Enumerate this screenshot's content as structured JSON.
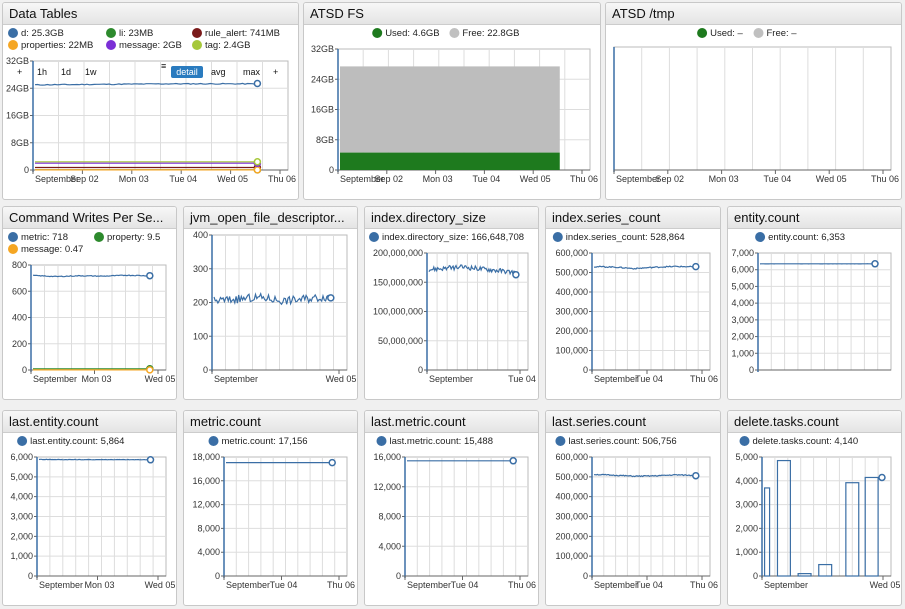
{
  "widgets": [
    {
      "title": "Data Tables",
      "type": "line",
      "legend": [
        {
          "label": "d: 25.3GB",
          "color": "#3a6ea5"
        },
        {
          "label": "li: 23MB",
          "color": "#2d8a2d"
        },
        {
          "label": "rule_alert: 741MB",
          "color": "#7a1a1a"
        },
        {
          "label": "properties: 22MB",
          "color": "#f5a623"
        },
        {
          "label": "message: 2GB",
          "color": "#7b2fd6"
        },
        {
          "label": "tag: 2.4GB",
          "color": "#a6c83a"
        }
      ],
      "controls": [
        "1h",
        "1d",
        "1w",
        "detail",
        "avg",
        "max"
      ],
      "yticks": [
        "0",
        "8GB",
        "16GB",
        "24GB",
        "32GB"
      ],
      "xticks": [
        "September",
        "Sep 02",
        "Mon 03",
        "Tue 04",
        "Wed 05",
        "Thu 06"
      ]
    },
    {
      "title": "ATSD FS",
      "type": "stacked-area",
      "legend": [
        {
          "label": "Used: 4.6GB",
          "color": "#1e7a1e"
        },
        {
          "label": "Free: 22.8GB",
          "color": "#c0c0c0"
        }
      ],
      "yticks": [
        "0",
        "8GB",
        "16GB",
        "24GB",
        "32GB"
      ],
      "xticks": [
        "September",
        "Sep 02",
        "Mon 03",
        "Tue 04",
        "Wed 05",
        "Thu 06"
      ]
    },
    {
      "title": "ATSD /tmp",
      "type": "empty",
      "legend": [
        {
          "label": "Used: –",
          "color": "#1e7a1e"
        },
        {
          "label": "Free: –",
          "color": "#c0c0c0"
        }
      ],
      "yticks": [],
      "xticks": [
        "September",
        "Sep 02",
        "Mon 03",
        "Tue 04",
        "Wed 05",
        "Thu 06"
      ]
    },
    {
      "title": "Command Writes Per Se...",
      "type": "line",
      "legend": [
        {
          "label": "metric: 718",
          "color": "#3a6ea5"
        },
        {
          "label": "property: 9.5",
          "color": "#2d8a2d"
        },
        {
          "label": "message: 0.47",
          "color": "#f5a623"
        }
      ],
      "yticks": [
        "0",
        "200",
        "400",
        "600",
        "800"
      ],
      "xticks": [
        "September",
        "Mon 03",
        "Wed 05"
      ]
    },
    {
      "title": "jvm_open_file_descriptor...",
      "type": "line",
      "legend": [],
      "yticks": [
        "0",
        "100",
        "200",
        "300",
        "400"
      ],
      "xticks": [
        "September",
        "Wed 05"
      ]
    },
    {
      "title": "index.directory_size",
      "type": "line",
      "legend": [
        {
          "label": "index.directory_size: 166,648,708",
          "color": "#3a6ea5"
        }
      ],
      "yticks": [
        "0",
        "50,000,000",
        "100,000,000",
        "150,000,000",
        "200,000,000"
      ],
      "xticks": [
        "September",
        "Tue 04"
      ]
    },
    {
      "title": "index.series_count",
      "type": "line",
      "legend": [
        {
          "label": "index.series_count: 528,864",
          "color": "#3a6ea5"
        }
      ],
      "yticks": [
        "0",
        "100,000",
        "200,000",
        "300,000",
        "400,000",
        "500,000",
        "600,000"
      ],
      "xticks": [
        "September",
        "Tue 04",
        "Thu 06"
      ]
    },
    {
      "title": "entity.count",
      "type": "line",
      "legend": [
        {
          "label": "entity.count: 6,353",
          "color": "#3a6ea5"
        }
      ],
      "yticks": [
        "0",
        "1,000",
        "2,000",
        "3,000",
        "4,000",
        "5,000",
        "6,000",
        "7,000"
      ],
      "xticks": []
    },
    {
      "title": "last.entity.count",
      "type": "line",
      "legend": [
        {
          "label": "last.entity.count: 5,864",
          "color": "#3a6ea5"
        }
      ],
      "yticks": [
        "0",
        "1,000",
        "2,000",
        "3,000",
        "4,000",
        "5,000",
        "6,000"
      ],
      "xticks": [
        "September",
        "Mon 03",
        "Wed 05"
      ]
    },
    {
      "title": "metric.count",
      "type": "line",
      "legend": [
        {
          "label": "metric.count: 17,156",
          "color": "#3a6ea5"
        }
      ],
      "yticks": [
        "0",
        "4,000",
        "8,000",
        "12,000",
        "16,000",
        "18,000"
      ],
      "xticks": [
        "September",
        "Tue 04",
        "Thu 06"
      ]
    },
    {
      "title": "last.metric.count",
      "type": "line",
      "legend": [
        {
          "label": "last.metric.count: 15,488",
          "color": "#3a6ea5"
        }
      ],
      "yticks": [
        "0",
        "4,000",
        "8,000",
        "12,000",
        "16,000"
      ],
      "xticks": [
        "September",
        "Tue 04",
        "Thu 06"
      ]
    },
    {
      "title": "last.series.count",
      "type": "line",
      "legend": [
        {
          "label": "last.series.count: 506,756",
          "color": "#3a6ea5"
        }
      ],
      "yticks": [
        "0",
        "100,000",
        "200,000",
        "300,000",
        "400,000",
        "500,000",
        "600,000"
      ],
      "xticks": [
        "September",
        "Tue 04",
        "Thu 06"
      ]
    },
    {
      "title": "delete.tasks.count",
      "type": "bar",
      "legend": [
        {
          "label": "delete.tasks.count: 4,140",
          "color": "#3a6ea5"
        }
      ],
      "yticks": [
        "0",
        "1,000",
        "2,000",
        "3,000",
        "4,000",
        "5,000"
      ],
      "xticks": [
        "September",
        "Wed 05"
      ]
    }
  ],
  "chart_data": [
    {
      "widget": "Data Tables",
      "type": "line",
      "ylim": [
        0,
        32
      ],
      "x": [
        "September",
        "Sep 02",
        "Mon 03",
        "Tue 04",
        "Wed 05",
        "Thu 06"
      ],
      "series": [
        {
          "name": "d",
          "values": [
            25.0,
            25.1,
            25.2,
            25.3,
            25.3,
            25.3
          ]
        },
        {
          "name": "li",
          "values": [
            0.02,
            0.02,
            0.02,
            0.02,
            0.02,
            0.02
          ]
        },
        {
          "name": "rule_alert",
          "values": [
            0.74,
            0.74,
            0.74,
            0.74,
            0.74,
            0.74
          ]
        },
        {
          "name": "properties",
          "values": [
            0.02,
            0.02,
            0.02,
            0.02,
            0.02,
            0.02
          ]
        },
        {
          "name": "message",
          "values": [
            2.0,
            2.0,
            2.0,
            2.0,
            2.0,
            2.0
          ]
        },
        {
          "name": "tag",
          "values": [
            2.4,
            2.4,
            2.4,
            2.4,
            2.4,
            2.4
          ]
        }
      ]
    },
    {
      "widget": "ATSD FS",
      "type": "area",
      "ylim": [
        0,
        32
      ],
      "series": [
        {
          "name": "Used",
          "values": [
            4.6
          ]
        },
        {
          "name": "Free",
          "values": [
            22.8
          ]
        }
      ]
    },
    {
      "widget": "Command Writes Per Se...",
      "type": "line",
      "ylim": [
        0,
        800
      ],
      "series": [
        {
          "name": "metric",
          "values": [
            720,
            712,
            718,
            715,
            722,
            718
          ]
        },
        {
          "name": "property",
          "values": [
            9.5,
            9.5,
            9.5,
            9.5,
            9.5,
            9.5
          ]
        },
        {
          "name": "message",
          "values": [
            0.47,
            0.47,
            0.47,
            0.47,
            0.47,
            0.47
          ]
        }
      ]
    },
    {
      "widget": "jvm_open_file_descriptor...",
      "type": "line",
      "ylim": [
        0,
        400
      ],
      "series": [
        {
          "values": [
            205,
            210,
            215,
            205,
            212,
            218
          ]
        }
      ]
    },
    {
      "widget": "index.directory_size",
      "type": "line",
      "ylim": [
        0,
        200000000
      ],
      "series": [
        {
          "name": "index.directory_size",
          "values": [
            172000000,
            174000000,
            176000000,
            173000000,
            170000000,
            166648708
          ]
        }
      ]
    },
    {
      "widget": "index.series_count",
      "type": "line",
      "ylim": [
        0,
        600000
      ],
      "series": [
        {
          "name": "index.series_count",
          "values": [
            530000,
            528000,
            520000,
            527000,
            531000,
            528864
          ]
        }
      ]
    },
    {
      "widget": "entity.count",
      "type": "line",
      "ylim": [
        0,
        7000
      ],
      "series": [
        {
          "name": "entity.count",
          "values": [
            6350,
            6352,
            6353,
            6353,
            6353,
            6353
          ]
        }
      ]
    },
    {
      "widget": "last.entity.count",
      "type": "line",
      "ylim": [
        0,
        6000
      ],
      "series": [
        {
          "name": "last.entity.count",
          "values": [
            5880,
            5870,
            5866,
            5870,
            5864,
            5864
          ]
        }
      ]
    },
    {
      "widget": "metric.count",
      "type": "line",
      "ylim": [
        0,
        18000
      ],
      "series": [
        {
          "name": "metric.count",
          "values": [
            17156,
            17156,
            17156,
            17156,
            17156,
            17156
          ]
        }
      ]
    },
    {
      "widget": "last.metric.count",
      "type": "line",
      "ylim": [
        0,
        16000
      ],
      "series": [
        {
          "name": "last.metric.count",
          "values": [
            15488,
            15488,
            15488,
            15488,
            15488,
            15488
          ]
        }
      ]
    },
    {
      "widget": "last.series.count",
      "type": "line",
      "ylim": [
        0,
        600000
      ],
      "series": [
        {
          "name": "last.series.count",
          "values": [
            512000,
            508000,
            503000,
            505000,
            510000,
            506756
          ]
        }
      ]
    },
    {
      "widget": "delete.tasks.count",
      "type": "bar",
      "ylim": [
        0,
        5000
      ],
      "series": [
        {
          "name": "delete.tasks.count",
          "values": [
            3700,
            4850,
            100,
            480,
            3920,
            4140
          ]
        }
      ]
    }
  ]
}
